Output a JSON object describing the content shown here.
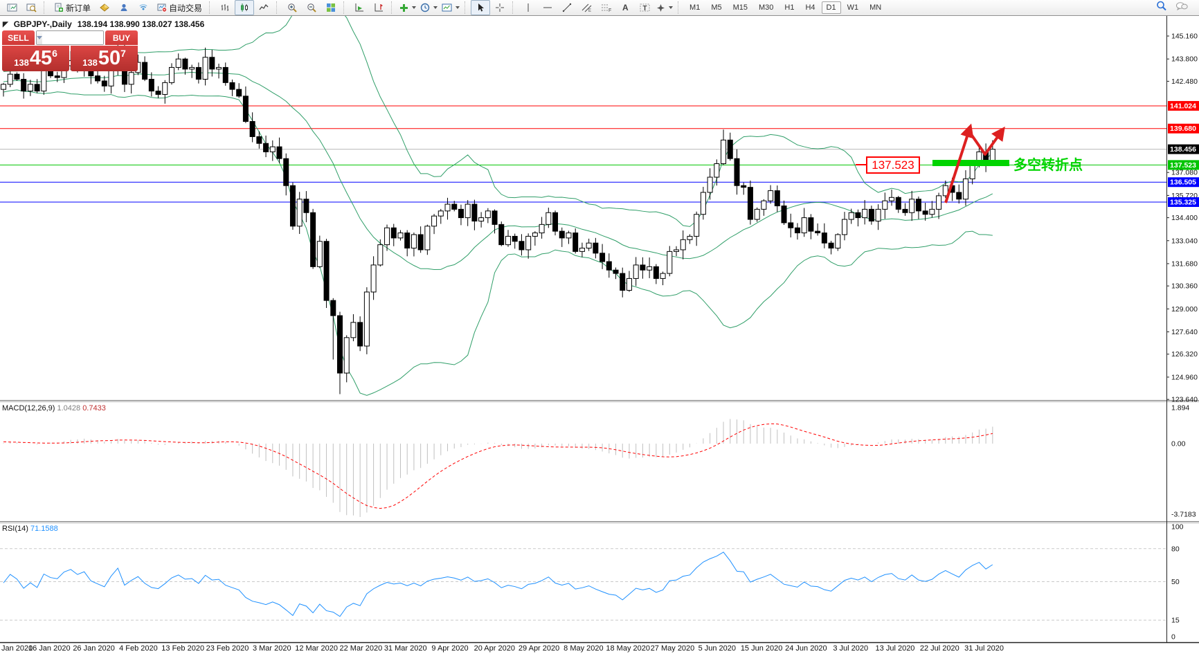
{
  "toolbar": {
    "new_order_label": "新订单",
    "autotrading_label": "自动交易",
    "timeframes": [
      "M1",
      "M5",
      "M15",
      "M30",
      "H1",
      "H4",
      "D1",
      "W1",
      "MN"
    ],
    "active_timeframe": "D1"
  },
  "chart": {
    "title": "GBPJPY-,Daily",
    "ohlc": "138.194 138.990 138.027 138.456",
    "trade_panel": {
      "sell_label": "SELL",
      "buy_label": "BUY",
      "volume": "1.00",
      "sell_base": "138",
      "sell_big": "45",
      "sell_pip": "6",
      "buy_base": "138",
      "buy_big": "50",
      "buy_pip": "7"
    }
  },
  "chart_data": {
    "type": "candlestick",
    "symbol": "GBPJPY-",
    "timeframe": "Daily",
    "ylim": [
      123.6,
      146.35
    ],
    "first_open": 142.0,
    "warmup_closes": [
      141.8,
      142.1,
      142.4,
      142.2,
      141.9,
      142.3,
      142.6,
      142.4,
      142.1,
      141.8,
      142.0,
      142.5,
      142.8,
      142.6,
      142.3,
      142.1,
      142.4,
      142.7,
      142.9,
      142.6,
      142.2,
      141.9,
      142.1,
      142.4,
      142.6,
      142.8,
      142.5,
      142.2,
      142.0,
      142.3,
      142.6,
      142.9,
      143.1,
      142.8,
      142.5,
      142.2,
      142.4,
      142.7,
      142.5,
      142.2
    ],
    "closes": [
      142.3,
      142.9,
      142.6,
      141.9,
      142.3,
      141.9,
      143.1,
      142.8,
      142.7,
      143.4,
      143.7,
      143.3,
      143.6,
      142.8,
      142.5,
      142.2,
      143.3,
      144.4,
      142.3,
      143.0,
      143.6,
      142.6,
      141.9,
      141.7,
      142.4,
      143.3,
      143.8,
      143.2,
      143.3,
      142.6,
      143.9,
      143.2,
      143.3,
      142.4,
      142.0,
      141.6,
      140.1,
      139.2,
      138.8,
      138.3,
      138.6,
      137.9,
      136.3,
      133.9,
      135.5,
      134.7,
      131.5,
      133.0,
      129.5,
      128.6,
      125.2,
      127.3,
      128.2,
      126.8,
      130.0,
      131.6,
      132.8,
      133.8,
      133.2,
      133.5,
      132.6,
      133.4,
      132.5,
      133.9,
      134.5,
      134.8,
      135.2,
      134.9,
      134.4,
      135.2,
      134.2,
      134.4,
      134.8,
      134.0,
      132.8,
      133.3,
      133.0,
      132.5,
      133.3,
      133.5,
      134.0,
      134.7,
      133.6,
      133.2,
      133.5,
      132.4,
      132.6,
      132.9,
      132.3,
      131.8,
      131.3,
      131.1,
      130.1,
      130.8,
      131.6,
      131.3,
      131.5,
      130.8,
      131.1,
      132.4,
      132.5,
      133.1,
      133.3,
      134.6,
      135.9,
      136.8,
      137.6,
      139.0,
      137.9,
      136.3,
      136.2,
      134.3,
      134.9,
      135.4,
      136.0,
      135.1,
      134.1,
      133.8,
      133.5,
      134.4,
      133.6,
      133.5,
      132.9,
      132.6,
      133.4,
      134.3,
      134.7,
      134.4,
      134.9,
      134.2,
      134.9,
      135.4,
      135.6,
      134.9,
      134.7,
      135.5,
      134.8,
      134.6,
      134.9,
      135.7,
      136.3,
      135.9,
      135.5,
      136.7,
      137.6,
      138.3,
      137.5,
      138.456
    ],
    "wick_overrides": {
      "49": {
        "low": 126.0
      },
      "50": {
        "low": 123.95
      },
      "107": {
        "high": 139.62
      },
      "146": {
        "low": 137.1
      },
      "147": {
        "high": 138.99,
        "low": 138.03
      }
    },
    "x_labels": [
      "Jan 2020",
      "16 Jan 2020",
      "26 Jan 2020",
      "4 Feb 2020",
      "13 Feb 2020",
      "23 Feb 2020",
      "3 Mar 2020",
      "12 Mar 2020",
      "22 Mar 2020",
      "31 Mar 2020",
      "9 Apr 2020",
      "20 Apr 2020",
      "29 Apr 2020",
      "8 May 2020",
      "18 May 2020",
      "27 May 2020",
      "5 Jun 2020",
      "15 Jun 2020",
      "24 Jun 2020",
      "3 Jul 2020",
      "13 Jul 2020",
      "22 Jul 2020",
      "31 Jul 2020"
    ],
    "y_ticks": [
      145.16,
      143.8,
      142.48,
      137.08,
      135.72,
      134.4,
      133.04,
      131.68,
      130.36,
      129.0,
      127.64,
      126.32,
      124.96,
      123.64
    ],
    "hlines": [
      {
        "price": 141.024,
        "label": "141.024",
        "color": "#ff0000"
      },
      {
        "price": 139.68,
        "label": "139.680",
        "color": "#ff0000"
      },
      {
        "price": 137.523,
        "label": "137.523",
        "color": "#00c400"
      },
      {
        "price": 136.505,
        "label": "136.505",
        "color": "#0000ff"
      },
      {
        "price": 135.325,
        "label": "135.325",
        "color": "#0000ff"
      }
    ],
    "bid": {
      "price": 138.456,
      "label": "138.456",
      "line_color": "#b8b8b8",
      "badge_color": "#000000"
    },
    "bollinger": {
      "period": 20,
      "deviation": 2,
      "color": "#2f9e68"
    },
    "candle_colors": {
      "up_fill": "#ffffff",
      "down_fill": "#000000",
      "outline": "#000000"
    },
    "annotations": {
      "price_box_label": "137.523",
      "note_text": "多空转折点",
      "box_color": "#ff0000",
      "green_color": "#00d400",
      "arrow_color": "#dd2020"
    },
    "macd": {
      "label": "MACD(12,26,9)",
      "value_main": "1.0428",
      "value_signal": "0.7433",
      "ticks": [
        1.894,
        0,
        -3.7183
      ],
      "tick_labels": [
        "1.894",
        "0.00",
        "-3.7183"
      ],
      "hist_color": "#c0c0c0",
      "signal_color": "#ff0000"
    },
    "rsi": {
      "label": "RSI(14)",
      "value_text": "71.1588",
      "ticks": [
        100,
        80,
        50,
        15,
        0
      ],
      "tick_labels": [
        "100",
        "80",
        "50",
        "15",
        "0"
      ],
      "levels": [
        80,
        50,
        15
      ],
      "color": "#1e90ff"
    }
  }
}
